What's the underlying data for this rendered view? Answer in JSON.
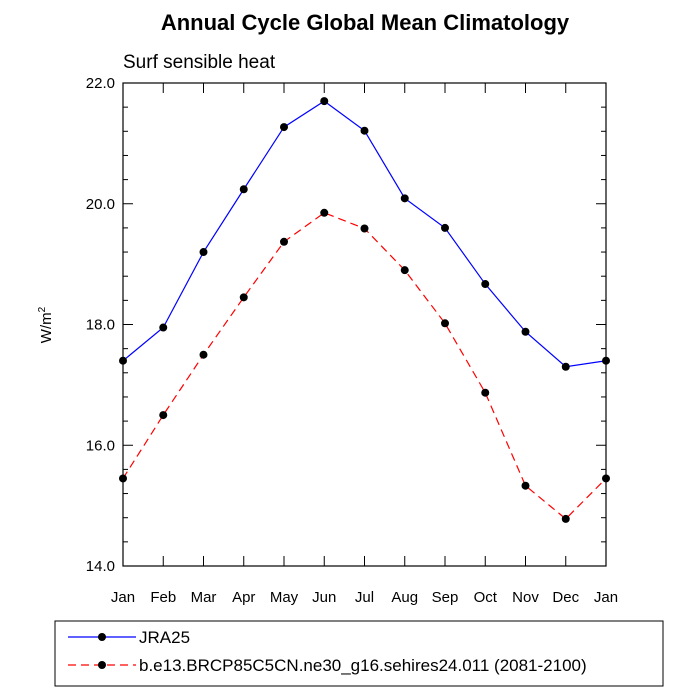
{
  "chart_data": {
    "type": "line",
    "title": "Annual Cycle Global Mean Climatology",
    "subtitle": "Surf sensible heat",
    "xlabel": "",
    "ylabel": "W/m",
    "ylabel_superscript": "2",
    "categories": [
      "Jan",
      "Feb",
      "Mar",
      "Apr",
      "May",
      "Jun",
      "Jul",
      "Aug",
      "Sep",
      "Oct",
      "Nov",
      "Dec",
      "Jan"
    ],
    "ylim": [
      14.0,
      22.0
    ],
    "yticks": [
      "14.0",
      "16.0",
      "18.0",
      "20.0",
      "22.0"
    ],
    "grid": false,
    "legend_position": "bottom",
    "series": [
      {
        "name": "JRA25",
        "color": "#0000ff",
        "line_style": "solid",
        "marker": "filled-circle",
        "values": [
          17.4,
          17.95,
          19.2,
          20.24,
          21.27,
          21.7,
          21.21,
          20.09,
          19.6,
          18.67,
          17.88,
          17.3,
          17.4
        ]
      },
      {
        "name": "b.e13.BRCP85C5CN.ne30_g16.sehires24.011 (2081-2100)",
        "color": "#ff0000",
        "line_style": "dashed",
        "marker": "filled-circle",
        "values": [
          15.45,
          16.5,
          17.5,
          18.45,
          19.37,
          19.85,
          19.59,
          18.9,
          18.02,
          16.87,
          15.33,
          14.78,
          15.45
        ]
      }
    ]
  }
}
